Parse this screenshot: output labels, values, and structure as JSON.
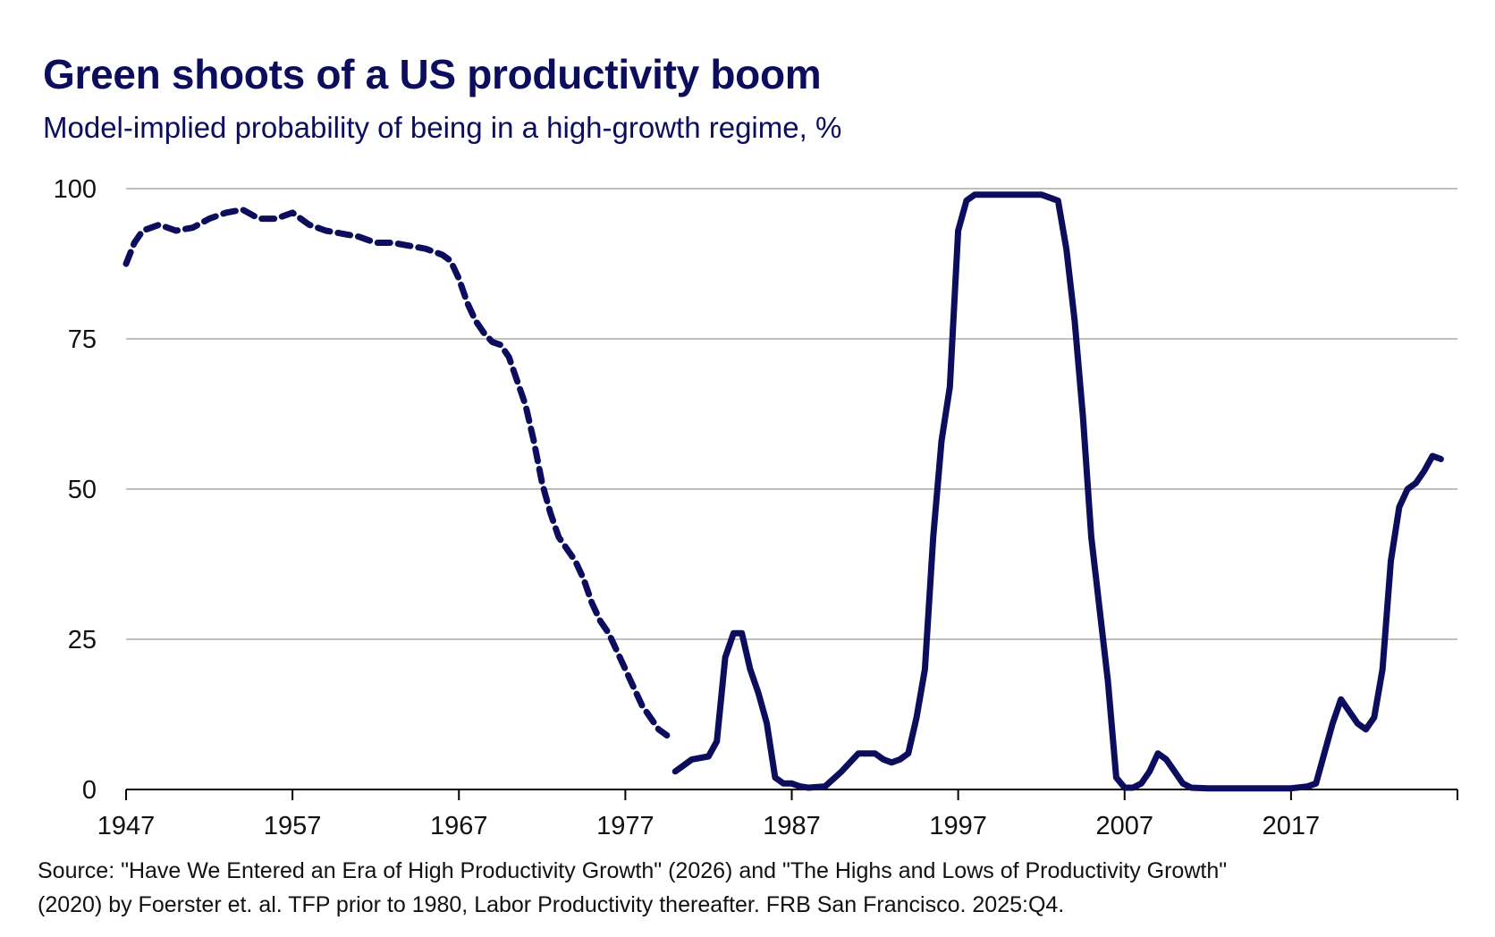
{
  "title": "Green shoots of a US productivity boom",
  "subtitle": "Model-implied probability of being in a high-growth regime, %",
  "source": {
    "line1": "Source: \"Have We Entered an Era of High Productivity Growth\" (2026) and \"The Highs and Lows of Productivity Growth\"",
    "line2": "(2020) by Foerster et. al. TFP prior to 1980, Labor Productivity thereafter. FRB San Francisco. 2025:Q4."
  },
  "colors": {
    "series": "#0d0d5e",
    "grid": "#bfbfbf",
    "axis": "#000000",
    "text": "#111111"
  },
  "chart_data": {
    "type": "line",
    "title": "Green shoots of a US productivity boom",
    "subtitle": "Model-implied probability of being in a high-growth regime, %",
    "xlabel": "",
    "ylabel": "",
    "xlim": [
      1947,
      2027
    ],
    "ylim": [
      0,
      100
    ],
    "x_ticks": [
      1947,
      1957,
      1967,
      1977,
      1987,
      1997,
      2007,
      2017
    ],
    "y_ticks": [
      0,
      25,
      50,
      75,
      100
    ],
    "grid": true,
    "legend": "none",
    "series": [
      {
        "label": "TFP prior to 1980",
        "style": "dashed",
        "x": [
          1947.0,
          1947.5,
          1948.0,
          1949.0,
          1950.0,
          1951.0,
          1952.0,
          1953.0,
          1954.0,
          1955.0,
          1956.0,
          1957.0,
          1958.0,
          1959.0,
          1960.0,
          1961.0,
          1962.0,
          1963.0,
          1964.0,
          1965.0,
          1966.0,
          1966.5,
          1967.0,
          1967.5,
          1968.0,
          1968.5,
          1969.0,
          1969.5,
          1970.0,
          1970.5,
          1971.0,
          1971.5,
          1972.0,
          1972.5,
          1973.0,
          1973.5,
          1974.0,
          1974.5,
          1975.0,
          1975.5,
          1976.0,
          1976.5,
          1977.0,
          1977.5,
          1978.0,
          1978.5,
          1979.0,
          1979.5
        ],
        "y": [
          87.5,
          91,
          93,
          94,
          93,
          93.5,
          95,
          96,
          96.5,
          95,
          95,
          96,
          94,
          93,
          92.5,
          92,
          91,
          91,
          90.5,
          90,
          89,
          88,
          85,
          81,
          78,
          76,
          74.5,
          74,
          72,
          68,
          64,
          58,
          51,
          46,
          42,
          40,
          38,
          35,
          31,
          28,
          26,
          23,
          20,
          17,
          14,
          12,
          10,
          9
        ]
      },
      {
        "label": "Labor Productivity thereafter",
        "style": "solid",
        "x": [
          1980.0,
          1980.5,
          1981.0,
          1982.0,
          1982.5,
          1983.0,
          1983.5,
          1984.0,
          1984.5,
          1985.0,
          1985.5,
          1986.0,
          1986.5,
          1987.0,
          1987.5,
          1988.0,
          1989.0,
          1990.0,
          1991.0,
          1992.0,
          1992.5,
          1993.0,
          1993.5,
          1994.0,
          1994.5,
          1995.0,
          1995.5,
          1996.0,
          1996.5,
          1997.0,
          1997.5,
          1998.0,
          1999.0,
          2000.0,
          2001.0,
          2002.0,
          2003.0,
          2003.5,
          2004.0,
          2004.5,
          2005.0,
          2005.5,
          2006.0,
          2006.5,
          2007.0,
          2007.5,
          2008.0,
          2008.5,
          2009.0,
          2009.5,
          2010.0,
          2010.5,
          2011.0,
          2012.0,
          2013.0,
          2014.0,
          2015.0,
          2016.0,
          2017.0,
          2018.0,
          2018.5,
          2019.0,
          2019.5,
          2020.0,
          2020.5,
          2021.0,
          2021.5,
          2022.0,
          2022.5,
          2023.0,
          2023.5,
          2024.0,
          2024.5,
          2025.0,
          2025.5,
          2026.0
        ],
        "y": [
          3,
          4,
          5,
          5.5,
          8,
          22,
          26,
          26,
          20,
          16,
          11,
          2,
          1,
          1,
          0.5,
          0.3,
          0.5,
          3,
          6,
          6,
          5,
          4.5,
          5,
          6,
          12,
          20,
          42,
          58,
          67,
          93,
          98,
          99,
          99,
          99,
          99,
          99,
          98,
          90,
          78,
          62,
          42,
          30,
          18,
          2,
          0.3,
          0.3,
          1,
          3,
          6,
          5,
          3,
          1,
          0.3,
          0.2,
          0.2,
          0.2,
          0.2,
          0.2,
          0.2,
          0.5,
          1,
          6,
          11,
          15,
          13,
          11,
          10,
          12,
          20,
          38,
          47,
          50,
          51,
          53,
          55.5,
          55
        ]
      }
    ]
  }
}
